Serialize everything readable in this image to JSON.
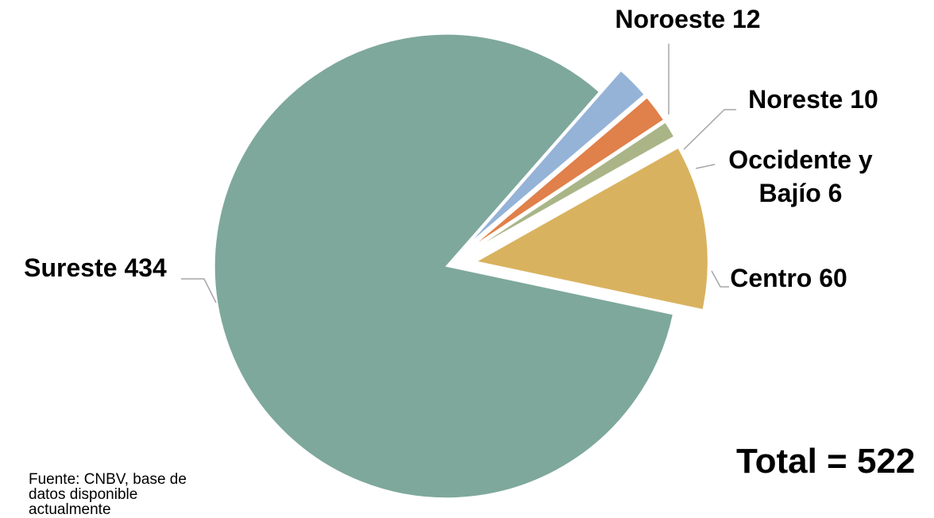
{
  "chart_data": {
    "type": "pie",
    "title": "",
    "total_label": "Total = 522",
    "source": "Fuente: CNBV, base de datos disponible actualmente",
    "slices": [
      {
        "label": "Noroeste 12",
        "category": "Noroeste",
        "value": 12,
        "color": "#95b3d7",
        "exploded": true
      },
      {
        "label": "Noreste 10",
        "category": "Noreste",
        "value": 10,
        "color": "#e0804a",
        "exploded": true
      },
      {
        "label": "Occidente y Bajío 6",
        "category": "Occidente y Bajío",
        "value": 6,
        "color": "#a9b587",
        "exploded": true
      },
      {
        "label": "Centro 60",
        "category": "Centro",
        "value": 60,
        "color": "#d9b25f",
        "exploded": true
      },
      {
        "label": "Sureste 434",
        "category": "Sureste",
        "value": 434,
        "color": "#7ea89c",
        "exploded": false
      }
    ]
  }
}
